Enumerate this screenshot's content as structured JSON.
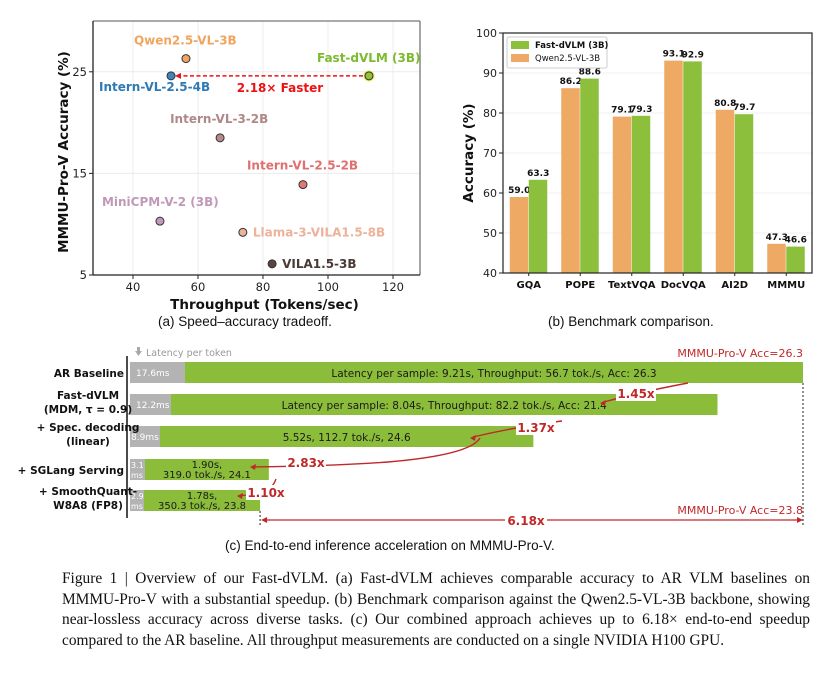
{
  "chart_data": [
    {
      "type": "scatter",
      "id": "a",
      "title": "",
      "caption": "(a) Speed–accuracy tradeoff.",
      "xlabel": "Throughput (Tokens/sec)",
      "ylabel": "MMMU-Pro-V Accuracy (%)",
      "xlim": [
        27.7,
        128.3
      ],
      "ylim": [
        5,
        30
      ],
      "xticks": [
        40,
        60,
        80,
        100,
        120
      ],
      "yticks": [
        5,
        15,
        25
      ],
      "grid": true,
      "points": [
        {
          "name": "Qwen2.5-VL-3B",
          "x": 56.3,
          "y": 26.3,
          "color": "#f0a55e",
          "label_color": "#f0a55e"
        },
        {
          "name": "Intern-VL-2.5-4B",
          "x": 51.7,
          "y": 24.6,
          "color": "#3a86c0",
          "label_color": "#2e7ab5"
        },
        {
          "name": "Fast-dVLM (3B)",
          "x": 112.6,
          "y": 24.6,
          "color": "#8fc33b",
          "label_color": "#7cba2e"
        },
        {
          "name": "Intern-VL-3-2B",
          "x": 66.8,
          "y": 18.5,
          "color": "#b48a8a",
          "label_color": "#b08888"
        },
        {
          "name": "Intern-VL-2.5-2B",
          "x": 92.3,
          "y": 13.9,
          "color": "#e07878",
          "label_color": "#e07070"
        },
        {
          "name": "MiniCPM-V-2 (3B)",
          "x": 48.3,
          "y": 10.3,
          "color": "#c09ab8",
          "label_color": "#c09ab8"
        },
        {
          "name": "Llama-3-VILA1.5-8B",
          "x": 73.8,
          "y": 9.2,
          "color": "#ecb29a",
          "label_color": "#ecb29a"
        },
        {
          "name": "VILA1.5-3B",
          "x": 82.8,
          "y": 6.1,
          "color": "#5a4540",
          "label_color": "#4a3a36"
        }
      ],
      "annotation": {
        "text": "2.18× Faster",
        "from": "Fast-dVLM (3B)",
        "to": "Intern-VL-2.5-4B",
        "color": "#ee1111"
      }
    },
    {
      "type": "bar",
      "id": "b",
      "caption": "(b) Benchmark comparison.",
      "xlabel": "",
      "ylabel": "Accuracy (%)",
      "ylim": [
        40,
        100
      ],
      "yticks": [
        40,
        50,
        60,
        70,
        80,
        90,
        100
      ],
      "grid": true,
      "legend_placement": "top-left",
      "categories": [
        "GQA",
        "POPE",
        "TextVQA",
        "DocVQA",
        "AI2D",
        "MMMU"
      ],
      "series": [
        {
          "name": "Qwen2.5-VL-3B",
          "color": "#eea964",
          "values": [
            59.0,
            86.2,
            79.1,
            93.1,
            80.8,
            47.3
          ],
          "labels": [
            "59.0",
            "86.2",
            "79.1",
            "93.1",
            "80.8",
            "47.3"
          ]
        },
        {
          "name": "Fast-dVLM (3B)",
          "color": "#8bbf3c",
          "values": [
            63.3,
            88.6,
            79.3,
            92.9,
            79.7,
            46.6
          ],
          "labels": [
            "63.3",
            "88.6",
            "79.3",
            "92.9",
            "79.7",
            "46.6"
          ]
        }
      ],
      "legend_order": [
        "Fast-dVLM (3B)",
        "Qwen2.5-VL-3B"
      ]
    },
    {
      "type": "bar",
      "id": "c",
      "orientation": "horizontal",
      "caption": "(c) End-to-end inference acceleration on MMMU-Pro-V.",
      "legend_note": "Latency per token",
      "categories": [
        "AR Baseline",
        "Fast-dVLM (MDM, τ = 0.9)",
        "+ Spec. decoding (linear)",
        "+ SGLang Serving",
        "+ SmoothQuant-W8A8 (FP8)"
      ],
      "rows": [
        {
          "label_lines": [
            "AR Baseline"
          ],
          "latency_per_sample_s": 9.21,
          "token_latency_label": "17.6ms",
          "token_latency_ms": 17.6,
          "bar_text": [
            "Latency per sample: 9.21s, Throughput: 56.7 tok./s, Acc: 26.3"
          ],
          "throughput": 56.7,
          "acc": 26.3
        },
        {
          "label_lines": [
            "Fast-dVLM",
            "(MDM, τ = 0.9)"
          ],
          "latency_per_sample_s": 8.04,
          "token_latency_label": "12.2ms",
          "token_latency_ms": 12.2,
          "bar_text": [
            "Latency per sample: 8.04s, Throughput: 82.2 tok./s, Acc: 21.4"
          ],
          "throughput": 82.2,
          "acc": 21.4
        },
        {
          "label_lines": [
            "+ Spec. decoding",
            "(linear)"
          ],
          "latency_per_sample_s": 5.52,
          "token_latency_label": "8.9ms",
          "token_latency_ms": 8.9,
          "bar_text": [
            "5.52s, 112.7 tok./s, 24.6"
          ],
          "throughput": 112.7,
          "acc": 24.6
        },
        {
          "label_lines": [
            "+ SGLang Serving"
          ],
          "latency_per_sample_s": 1.9,
          "token_latency_label": "3.1 ms",
          "token_latency_ms": 3.1,
          "bar_text": [
            "1.90s,",
            "319.0 tok./s, 24.1"
          ],
          "throughput": 319.0,
          "acc": 24.1
        },
        {
          "label_lines": [
            "+ SmoothQuant-",
            "W8A8 (FP8)"
          ],
          "latency_per_sample_s": 1.78,
          "token_latency_label": "2.9 ms",
          "token_latency_ms": 2.9,
          "bar_text": [
            "1.78s,",
            "350.3 tok./s, 23.8"
          ],
          "throughput": 350.3,
          "acc": 23.8
        }
      ],
      "speedups": [
        "1.45x",
        "1.37x",
        "2.83x",
        "1.10x"
      ],
      "total_speedup": "6.18x",
      "acc_top_label": "MMMU-Pro-V Acc=26.3",
      "acc_bottom_label": "MMMU-Pro-V Acc=23.8",
      "colors": {
        "bar": "#8bbd3a",
        "token": "#b3b3b3",
        "annotation": "#c0282a"
      }
    }
  ],
  "captions": {
    "a": "(a) Speed–accuracy tradeoff.",
    "b": "(b) Benchmark comparison.",
    "c": "(c) End-to-end inference acceleration on MMMU-Pro-V."
  },
  "figure_caption": "Figure 1 | Overview of our Fast-dVLM. (a) Fast-dVLM achieves comparable accuracy to AR VLM baselines on MMMU-Pro-V with a substantial speedup. (b) Benchmark comparison against the Qwen2.5-VL-3B backbone, showing near-lossless accuracy across diverse tasks. (c) Our combined approach achieves up to 6.18× end-to-end speedup compared to the AR baseline. All throughput measurements are conducted on a single NVIDIA H100 GPU."
}
